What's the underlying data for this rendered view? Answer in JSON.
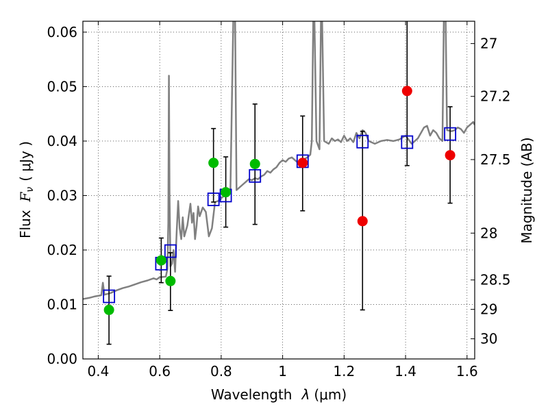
{
  "chart_data": {
    "type": "scatter",
    "xlabel": {
      "prefix": "Wavelength",
      "symbol": "λ",
      "unit": "(μm)"
    },
    "ylabel": {
      "prefix": "Flux",
      "symbol": "F",
      "subscript": "ν",
      "unit": "( μJy )"
    },
    "y2label": "Magnitude (AB)",
    "xlim": [
      0.35,
      1.625
    ],
    "ylim": [
      0.0,
      0.062
    ],
    "grid": true,
    "x_ticks": [
      0.4,
      0.6,
      0.8,
      1.0,
      1.2,
      1.4,
      1.6
    ],
    "x_tick_labels": [
      "0.4",
      "0.6",
      "0.8",
      "1",
      "1.2",
      "1.4",
      "1.6"
    ],
    "y_ticks": [
      0.0,
      0.01,
      0.02,
      0.03,
      0.04,
      0.05,
      0.06
    ],
    "y_tick_labels": [
      "0.00",
      "0.01",
      "0.02",
      "0.03",
      "0.04",
      "0.05",
      "0.06"
    ],
    "y2_ticks": [
      {
        "label": "27",
        "flux": 0.0579
      },
      {
        "label": "27.2",
        "flux": 0.0482
      },
      {
        "label": "27.5",
        "flux": 0.0366
      },
      {
        "label": "28",
        "flux": 0.0231
      },
      {
        "label": "28.5",
        "flux": 0.0145
      },
      {
        "label": "29",
        "flux": 0.0091
      },
      {
        "label": "30",
        "flux": 0.0037
      }
    ],
    "colors": {
      "model": "#808080",
      "template_box": "#0000cc",
      "observed_green": "#00bb00",
      "observed_red": "#ee0000",
      "errorbar": "#000000"
    },
    "model_spectrum": [
      [
        0.35,
        0.011
      ],
      [
        0.37,
        0.0112
      ],
      [
        0.39,
        0.0115
      ],
      [
        0.41,
        0.0117
      ],
      [
        0.415,
        0.014
      ],
      [
        0.42,
        0.0118
      ],
      [
        0.44,
        0.0121
      ],
      [
        0.46,
        0.0126
      ],
      [
        0.48,
        0.013
      ],
      [
        0.5,
        0.0133
      ],
      [
        0.52,
        0.0137
      ],
      [
        0.54,
        0.0141
      ],
      [
        0.56,
        0.0144
      ],
      [
        0.58,
        0.0148
      ],
      [
        0.59,
        0.0146
      ],
      [
        0.6,
        0.015
      ],
      [
        0.62,
        0.0151
      ],
      [
        0.625,
        0.0165
      ],
      [
        0.628,
        0.025
      ],
      [
        0.63,
        0.052
      ],
      [
        0.632,
        0.03
      ],
      [
        0.635,
        0.017
      ],
      [
        0.64,
        0.0175
      ],
      [
        0.645,
        0.02
      ],
      [
        0.65,
        0.016
      ],
      [
        0.655,
        0.023
      ],
      [
        0.66,
        0.029
      ],
      [
        0.665,
        0.024
      ],
      [
        0.67,
        0.022
      ],
      [
        0.675,
        0.026
      ],
      [
        0.68,
        0.0225
      ],
      [
        0.69,
        0.0245
      ],
      [
        0.7,
        0.0285
      ],
      [
        0.705,
        0.025
      ],
      [
        0.71,
        0.0268
      ],
      [
        0.715,
        0.022
      ],
      [
        0.72,
        0.0245
      ],
      [
        0.725,
        0.028
      ],
      [
        0.73,
        0.0262
      ],
      [
        0.74,
        0.0278
      ],
      [
        0.75,
        0.027
      ],
      [
        0.76,
        0.0225
      ],
      [
        0.77,
        0.024
      ],
      [
        0.78,
        0.0288
      ],
      [
        0.79,
        0.029
      ],
      [
        0.8,
        0.0295
      ],
      [
        0.81,
        0.03
      ],
      [
        0.82,
        0.0302
      ],
      [
        0.83,
        0.0305
      ],
      [
        0.84,
        0.064
      ],
      [
        0.845,
        0.064
      ],
      [
        0.85,
        0.031
      ],
      [
        0.86,
        0.0315
      ],
      [
        0.87,
        0.032
      ],
      [
        0.88,
        0.0325
      ],
      [
        0.89,
        0.033
      ],
      [
        0.9,
        0.0328
      ],
      [
        0.91,
        0.0332
      ],
      [
        0.92,
        0.033
      ],
      [
        0.93,
        0.0335
      ],
      [
        0.94,
        0.0338
      ],
      [
        0.95,
        0.0345
      ],
      [
        0.96,
        0.0342
      ],
      [
        0.97,
        0.0348
      ],
      [
        0.98,
        0.0352
      ],
      [
        0.99,
        0.036
      ],
      [
        1.0,
        0.0365
      ],
      [
        1.01,
        0.0362
      ],
      [
        1.02,
        0.0368
      ],
      [
        1.03,
        0.037
      ],
      [
        1.04,
        0.0365
      ],
      [
        1.05,
        0.036
      ],
      [
        1.06,
        0.0363
      ],
      [
        1.08,
        0.037
      ],
      [
        1.09,
        0.0375
      ],
      [
        1.095,
        0.04
      ],
      [
        1.1,
        0.064
      ],
      [
        1.103,
        0.064
      ],
      [
        1.11,
        0.04
      ],
      [
        1.12,
        0.0385
      ],
      [
        1.125,
        0.064
      ],
      [
        1.128,
        0.064
      ],
      [
        1.135,
        0.04
      ],
      [
        1.15,
        0.0395
      ],
      [
        1.16,
        0.0405
      ],
      [
        1.17,
        0.04
      ],
      [
        1.18,
        0.0403
      ],
      [
        1.19,
        0.0398
      ],
      [
        1.2,
        0.041
      ],
      [
        1.21,
        0.04
      ],
      [
        1.22,
        0.0405
      ],
      [
        1.23,
        0.0398
      ],
      [
        1.24,
        0.0415
      ],
      [
        1.25,
        0.0405
      ],
      [
        1.26,
        0.042
      ],
      [
        1.27,
        0.0415
      ],
      [
        1.28,
        0.04
      ],
      [
        1.3,
        0.0395
      ],
      [
        1.32,
        0.04
      ],
      [
        1.34,
        0.0402
      ],
      [
        1.36,
        0.04
      ],
      [
        1.38,
        0.0403
      ],
      [
        1.4,
        0.041
      ],
      [
        1.42,
        0.0395
      ],
      [
        1.44,
        0.0405
      ],
      [
        1.46,
        0.0425
      ],
      [
        1.47,
        0.0428
      ],
      [
        1.48,
        0.041
      ],
      [
        1.49,
        0.042
      ],
      [
        1.5,
        0.0415
      ],
      [
        1.51,
        0.0405
      ],
      [
        1.52,
        0.04
      ],
      [
        1.525,
        0.064
      ],
      [
        1.53,
        0.064
      ],
      [
        1.535,
        0.042
      ],
      [
        1.55,
        0.0418
      ],
      [
        1.56,
        0.042
      ],
      [
        1.57,
        0.0425
      ],
      [
        1.58,
        0.0422
      ],
      [
        1.59,
        0.0415
      ],
      [
        1.6,
        0.0425
      ],
      [
        1.61,
        0.043
      ],
      [
        1.62,
        0.0435
      ],
      [
        1.625,
        0.043
      ]
    ],
    "template_points": [
      {
        "x": 0.435,
        "y": 0.0115
      },
      {
        "x": 0.605,
        "y": 0.0175
      },
      {
        "x": 0.635,
        "y": 0.0198
      },
      {
        "x": 0.775,
        "y": 0.0293
      },
      {
        "x": 0.815,
        "y": 0.03
      },
      {
        "x": 0.91,
        "y": 0.0336
      },
      {
        "x": 1.065,
        "y": 0.0363
      },
      {
        "x": 1.26,
        "y": 0.0399
      },
      {
        "x": 1.405,
        "y": 0.0398
      },
      {
        "x": 1.545,
        "y": 0.0413
      }
    ],
    "observed_points": [
      {
        "x": 0.435,
        "y": 0.009,
        "ylo": 0.0027,
        "yhi": 0.0152,
        "color": "green"
      },
      {
        "x": 0.605,
        "y": 0.0181,
        "ylo": 0.014,
        "yhi": 0.0222,
        "color": "green"
      },
      {
        "x": 0.635,
        "y": 0.0143,
        "ylo": 0.0089,
        "yhi": 0.0195,
        "color": "green"
      },
      {
        "x": 0.775,
        "y": 0.036,
        "ylo": 0.0288,
        "yhi": 0.0423,
        "color": "green"
      },
      {
        "x": 0.815,
        "y": 0.0306,
        "ylo": 0.0242,
        "yhi": 0.0371,
        "color": "green"
      },
      {
        "x": 0.91,
        "y": 0.0358,
        "ylo": 0.0247,
        "yhi": 0.0468,
        "color": "green"
      },
      {
        "x": 1.065,
        "y": 0.036,
        "ylo": 0.0272,
        "yhi": 0.0446,
        "color": "red"
      },
      {
        "x": 1.26,
        "y": 0.0253,
        "ylo": 0.009,
        "yhi": 0.0418,
        "color": "red"
      },
      {
        "x": 1.405,
        "y": 0.0492,
        "ylo": 0.0355,
        "yhi": 0.064,
        "color": "red"
      },
      {
        "x": 1.545,
        "y": 0.0374,
        "ylo": 0.0286,
        "yhi": 0.0463,
        "color": "red"
      }
    ]
  }
}
